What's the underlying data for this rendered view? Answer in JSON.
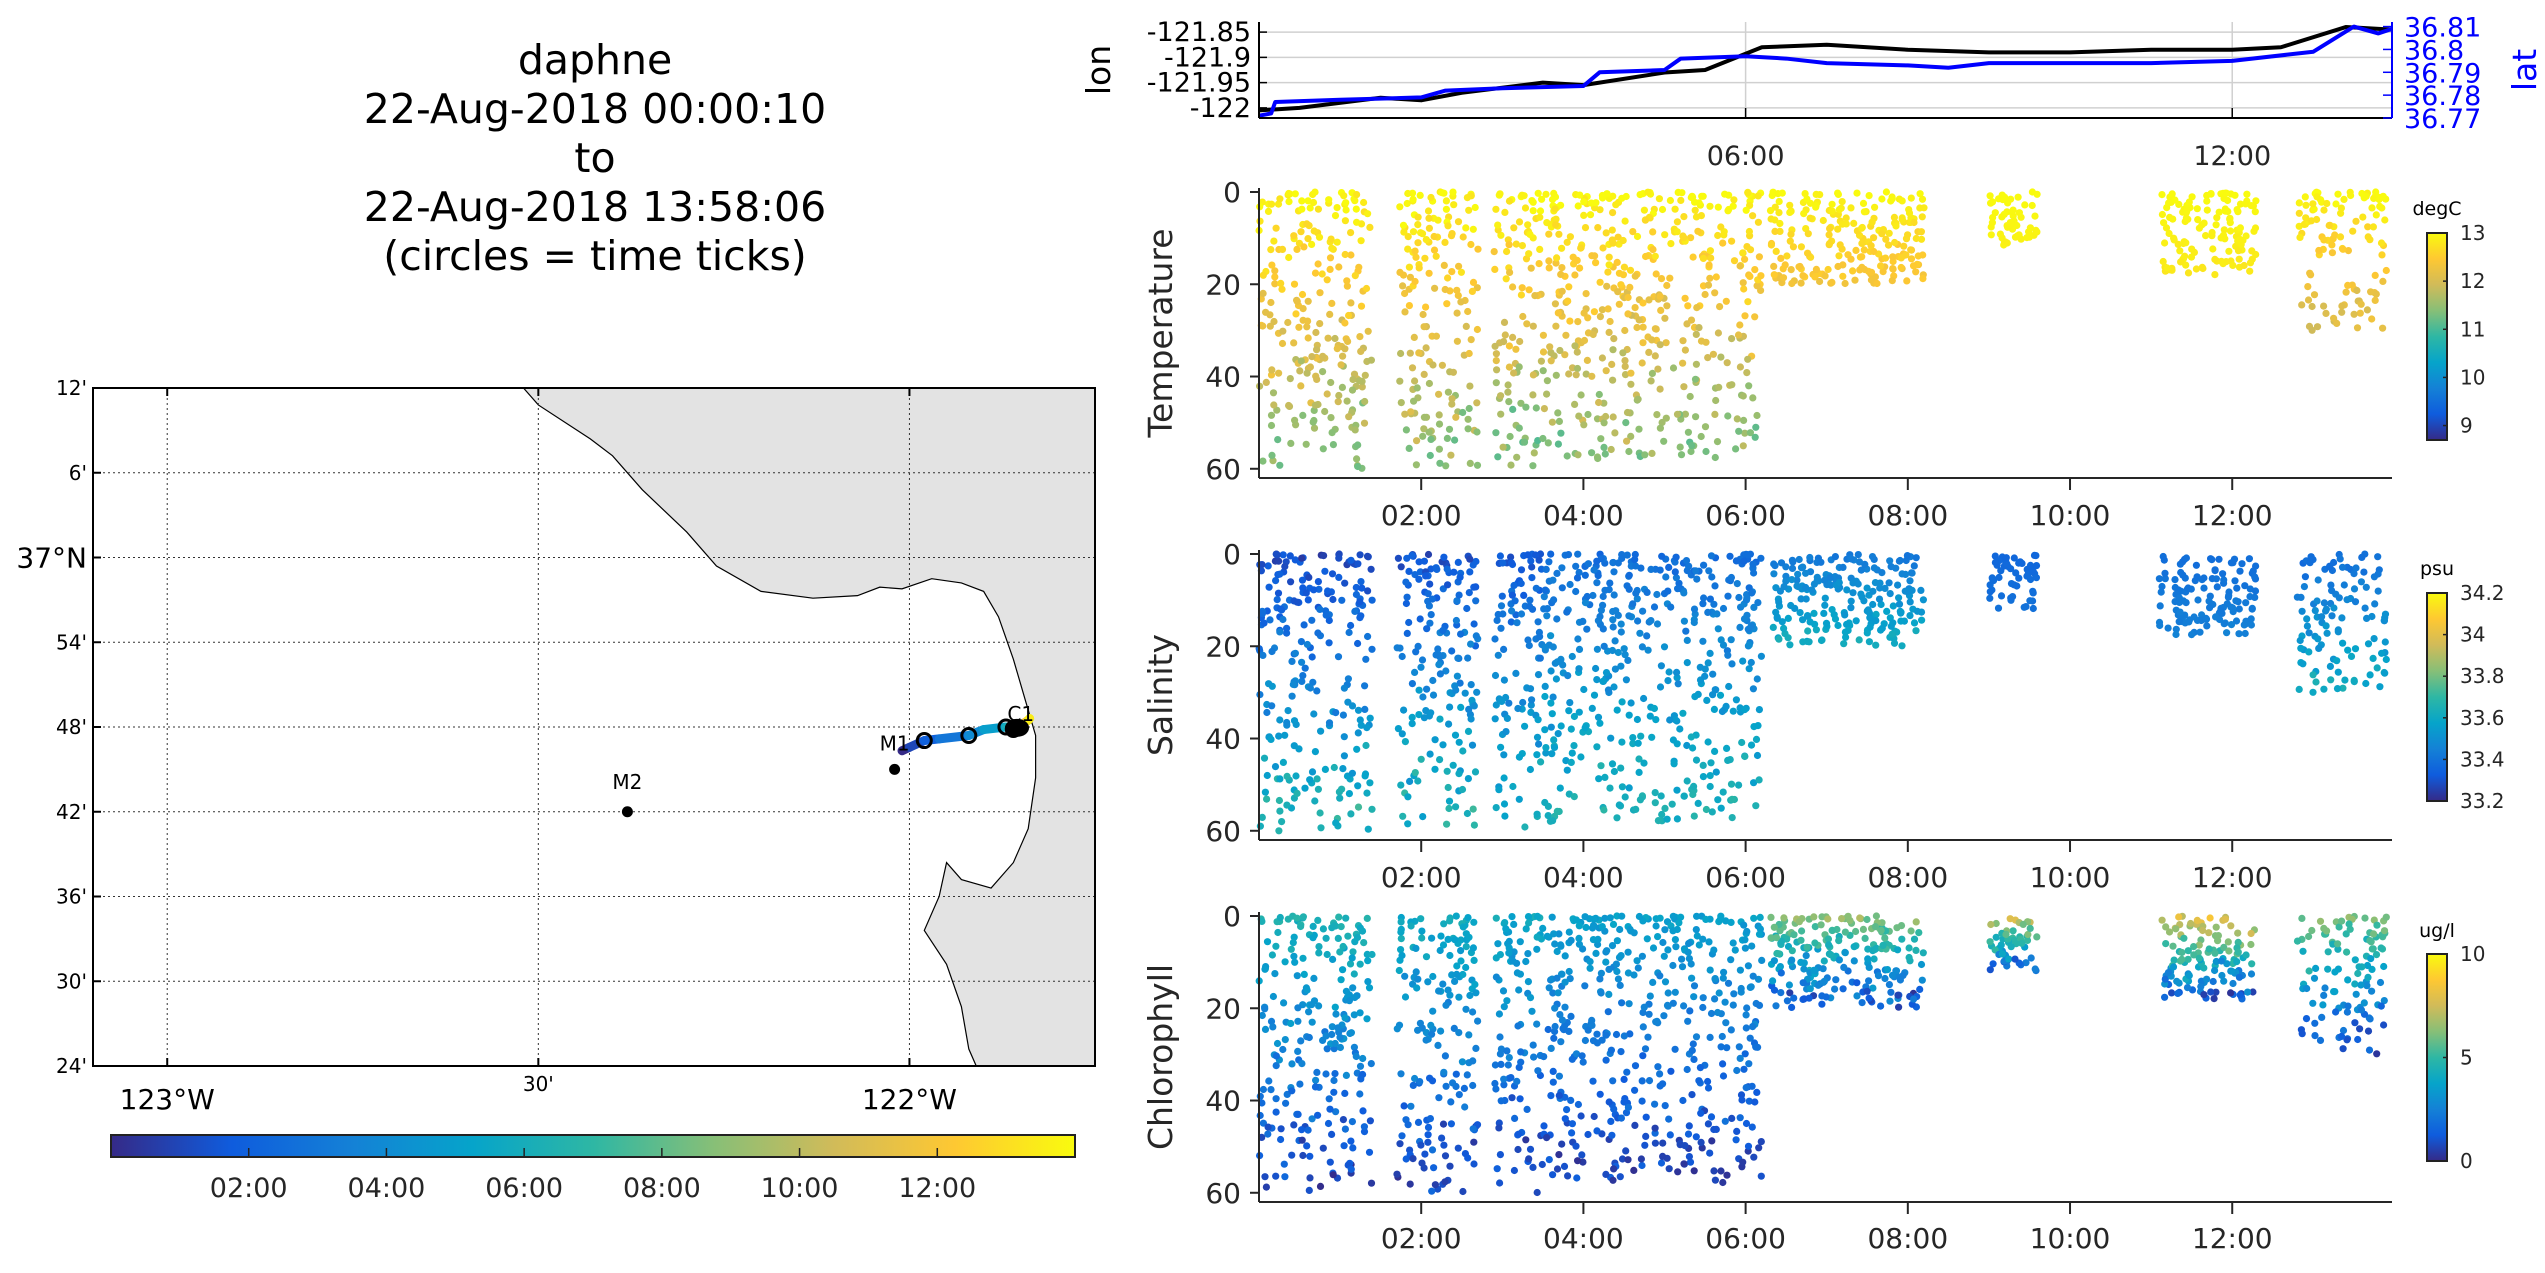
{
  "title": {
    "lines": [
      "daphne",
      "22-Aug-2018 00:00:10",
      "to",
      "22-Aug-2018 13:58:06",
      "(circles = time ticks)"
    ]
  },
  "colors": {
    "land": "#e3e3e3",
    "track_lon": "#000000",
    "track_lat": "#0000ff",
    "parula": [
      "#352a87",
      "#0f5cdd",
      "#1481d6",
      "#06a4ca",
      "#2eb7a4",
      "#87bf77",
      "#d1bb59",
      "#fec832",
      "#f9fb0e"
    ]
  },
  "map": {
    "lat_ticks": [
      "12'",
      "6'",
      "37°N",
      "54'",
      "48'",
      "42'",
      "36'",
      "30'",
      "24'"
    ],
    "lat_values": [
      37.2,
      37.1,
      37.0,
      36.9,
      36.8,
      36.7,
      36.6,
      36.5,
      36.4
    ],
    "lon_ticks": [
      "123°W",
      "30'",
      "122°W"
    ],
    "lon_values": [
      -123.0,
      -122.5,
      -122.0
    ],
    "lon_range": [
      -123.1,
      -121.75
    ],
    "lat_range": [
      36.4,
      37.2
    ],
    "stations": [
      {
        "name": "M2",
        "lon": -122.38,
        "lat": 36.7
      },
      {
        "name": "M1",
        "lon": -122.02,
        "lat": 36.75
      }
    ],
    "station_labels": [
      {
        "name": "C1",
        "lon": -121.85,
        "lat": 36.8
      },
      {
        "name": "M1",
        "lon": -122.02,
        "lat": 36.765
      },
      {
        "name": "M2",
        "lon": -122.38,
        "lat": 36.72
      }
    ],
    "track": [
      {
        "t": 0.0,
        "lon": -122.01,
        "lat": 36.772
      },
      {
        "t": 1.0,
        "lon": -122.0,
        "lat": 36.776
      },
      {
        "t": 2.0,
        "lon": -121.98,
        "lat": 36.784
      },
      {
        "t": 3.0,
        "lon": -121.96,
        "lat": 36.786
      },
      {
        "t": 4.0,
        "lon": -121.92,
        "lat": 36.79
      },
      {
        "t": 5.0,
        "lon": -121.9,
        "lat": 36.797
      },
      {
        "t": 6.0,
        "lon": -121.87,
        "lat": 36.8
      },
      {
        "t": 8.0,
        "lon": -121.86,
        "lat": 36.797
      },
      {
        "t": 10.0,
        "lon": -121.86,
        "lat": 36.798
      },
      {
        "t": 12.0,
        "lon": -121.855,
        "lat": 36.799
      },
      {
        "t": 13.5,
        "lon": -121.84,
        "lat": 36.808
      },
      {
        "t": 13.97,
        "lon": -121.838,
        "lat": 36.81
      }
    ],
    "time_tick_circles_t": [
      2,
      4,
      6,
      8,
      10,
      12
    ]
  },
  "map_colorbar": {
    "ticks": [
      "02:00",
      "04:00",
      "06:00",
      "08:00",
      "10:00",
      "12:00"
    ],
    "tick_hours": [
      2,
      4,
      6,
      8,
      10,
      12
    ],
    "range_hours": [
      0,
      14
    ]
  },
  "chart_data": [
    {
      "type": "line",
      "title": "",
      "ylabel": "lon",
      "ylabel_right": "lat",
      "xlim_hours": [
        0.0,
        13.97
      ],
      "x_ticks": [
        "06:00",
        "12:00"
      ],
      "x_tick_hours": [
        6,
        12
      ],
      "ylim_left": [
        -122.02,
        -121.83
      ],
      "y_ticks_left": [
        "-121.85",
        "-121.9",
        "-121.95",
        "-122"
      ],
      "y_tick_values_left": [
        -121.85,
        -121.9,
        -121.95,
        -122.0
      ],
      "ylim_right": [
        36.77,
        36.812
      ],
      "y_ticks_right": [
        "36.81",
        "36.8",
        "36.79",
        "36.78",
        "36.77"
      ],
      "y_tick_values_right": [
        36.81,
        36.8,
        36.79,
        36.78,
        36.77
      ],
      "grid": true,
      "series": [
        {
          "name": "lon",
          "axis": "left",
          "x": [
            0,
            0.5,
            1.5,
            2.0,
            2.5,
            3.5,
            4.0,
            5.0,
            5.5,
            6.2,
            7.0,
            8.0,
            9.0,
            10.0,
            11.0,
            12.0,
            12.6,
            13.4,
            13.97
          ],
          "y": [
            -122.005,
            -122.0,
            -121.98,
            -121.985,
            -121.97,
            -121.95,
            -121.955,
            -121.93,
            -121.925,
            -121.88,
            -121.875,
            -121.885,
            -121.89,
            -121.89,
            -121.885,
            -121.885,
            -121.88,
            -121.84,
            -121.845
          ]
        },
        {
          "name": "lat",
          "axis": "right",
          "x": [
            0,
            0.15,
            0.2,
            1.0,
            2.0,
            2.3,
            3.0,
            4.0,
            4.2,
            5.0,
            5.2,
            6.0,
            6.5,
            7.0,
            8.0,
            8.5,
            9.0,
            10.0,
            11.0,
            12.0,
            13.0,
            13.5,
            13.8,
            13.97
          ],
          "y": [
            36.771,
            36.772,
            36.777,
            36.778,
            36.779,
            36.782,
            36.783,
            36.784,
            36.79,
            36.791,
            36.796,
            36.797,
            36.796,
            36.794,
            36.793,
            36.792,
            36.794,
            36.794,
            36.794,
            36.795,
            36.799,
            36.81,
            36.807,
            36.809
          ]
        }
      ]
    },
    {
      "type": "scatter",
      "ylabel": "Temperature",
      "colorbar_label": "degC",
      "clim": [
        8.7,
        13.0
      ],
      "colorbar_ticks": [
        "13",
        "12",
        "11",
        "10",
        "9"
      ],
      "colorbar_tick_values": [
        13,
        12,
        11,
        10,
        9
      ],
      "y_ticks": [
        "0",
        "20",
        "40",
        "60"
      ],
      "y_tick_values": [
        0,
        20,
        40,
        60
      ],
      "ylim": [
        0,
        62
      ],
      "y_reversed": true,
      "xlim_hours": [
        0.0,
        13.97
      ],
      "x_ticks": [
        "02:00",
        "04:00",
        "06:00",
        "08:00",
        "10:00",
        "12:00"
      ],
      "x_tick_hours": [
        2,
        4,
        6,
        8,
        10,
        12
      ],
      "segments": [
        {
          "t0": 0.0,
          "t1": 1.4,
          "zmax": 60,
          "surface": 13.0,
          "bottom": 11.3
        },
        {
          "t0": 1.7,
          "t1": 2.7,
          "zmax": 60,
          "surface": 13.0,
          "bottom": 11.3
        },
        {
          "t0": 2.9,
          "t1": 3.5,
          "zmax": 60,
          "surface": 13.0,
          "bottom": 11.2
        },
        {
          "t0": 3.5,
          "t1": 6.2,
          "zmax": 58,
          "surface": 13.0,
          "bottom": 11.3
        },
        {
          "t0": 6.3,
          "t1": 8.2,
          "zmax": 20,
          "surface": 13.0,
          "bottom": 12.3
        },
        {
          "t0": 9.0,
          "t1": 9.6,
          "zmax": 12,
          "surface": 13.0,
          "bottom": 12.9
        },
        {
          "t0": 11.1,
          "t1": 12.3,
          "zmax": 18,
          "surface": 13.0,
          "bottom": 12.8
        },
        {
          "t0": 12.8,
          "t1": 13.9,
          "zmax": 30,
          "surface": 13.0,
          "bottom": 12.0
        }
      ]
    },
    {
      "type": "scatter",
      "ylabel": "Salinity",
      "colorbar_label": "psu",
      "clim": [
        33.2,
        34.2
      ],
      "colorbar_ticks": [
        "34.2",
        "34",
        "33.8",
        "33.6",
        "33.4",
        "33.2"
      ],
      "colorbar_tick_values": [
        34.2,
        34.0,
        33.8,
        33.6,
        33.4,
        33.2
      ],
      "y_ticks": [
        "0",
        "20",
        "40",
        "60"
      ],
      "y_tick_values": [
        0,
        20,
        40,
        60
      ],
      "ylim": [
        0,
        62
      ],
      "y_reversed": true,
      "xlim_hours": [
        0.0,
        13.97
      ],
      "x_ticks": [
        "02:00",
        "04:00",
        "06:00",
        "08:00",
        "10:00",
        "12:00"
      ],
      "x_tick_hours": [
        2,
        4,
        6,
        8,
        10,
        12
      ],
      "segments": [
        {
          "t0": 0.0,
          "t1": 1.4,
          "zmax": 60,
          "surface": 33.28,
          "bottom": 33.68
        },
        {
          "t0": 1.7,
          "t1": 2.7,
          "zmax": 60,
          "surface": 33.3,
          "bottom": 33.68
        },
        {
          "t0": 2.9,
          "t1": 3.5,
          "zmax": 60,
          "surface": 33.32,
          "bottom": 33.66
        },
        {
          "t0": 3.5,
          "t1": 6.2,
          "zmax": 58,
          "surface": 33.38,
          "bottom": 33.66
        },
        {
          "t0": 6.3,
          "t1": 8.2,
          "zmax": 20,
          "surface": 33.42,
          "bottom": 33.62
        },
        {
          "t0": 9.0,
          "t1": 9.6,
          "zmax": 12,
          "surface": 33.36,
          "bottom": 33.4
        },
        {
          "t0": 11.1,
          "t1": 12.3,
          "zmax": 18,
          "surface": 33.38,
          "bottom": 33.45
        },
        {
          "t0": 12.8,
          "t1": 13.9,
          "zmax": 30,
          "surface": 33.38,
          "bottom": 33.62
        }
      ]
    },
    {
      "type": "scatter",
      "ylabel": "Chlorophyll",
      "colorbar_label": "ug/l",
      "clim": [
        0,
        10
      ],
      "colorbar_ticks": [
        "10",
        "5",
        "0"
      ],
      "colorbar_tick_values": [
        10,
        5,
        0
      ],
      "y_ticks": [
        "0",
        "20",
        "40",
        "60"
      ],
      "y_tick_values": [
        0,
        20,
        40,
        60
      ],
      "ylim": [
        0,
        62
      ],
      "y_reversed": true,
      "xlim_hours": [
        0.0,
        13.97
      ],
      "x_ticks": [
        "02:00",
        "04:00",
        "06:00",
        "08:00",
        "10:00",
        "12:00"
      ],
      "x_tick_hours": [
        2,
        4,
        6,
        8,
        10,
        12
      ],
      "segments": [
        {
          "t0": 0.0,
          "t1": 1.4,
          "zmax": 60,
          "surface": 4.5,
          "bottom": 0.5
        },
        {
          "t0": 1.7,
          "t1": 2.7,
          "zmax": 60,
          "surface": 4.2,
          "bottom": 0.5
        },
        {
          "t0": 2.9,
          "t1": 3.5,
          "zmax": 60,
          "surface": 4.0,
          "bottom": 0.5
        },
        {
          "t0": 3.5,
          "t1": 6.2,
          "zmax": 58,
          "surface": 3.6,
          "bottom": 0.5
        },
        {
          "t0": 6.3,
          "t1": 8.2,
          "zmax": 20,
          "surface": 6.5,
          "bottom": 0.7
        },
        {
          "t0": 9.0,
          "t1": 9.6,
          "zmax": 12,
          "surface": 7.5,
          "bottom": 1.0
        },
        {
          "t0": 11.1,
          "t1": 12.3,
          "zmax": 18,
          "surface": 8.0,
          "bottom": 1.0
        },
        {
          "t0": 12.8,
          "t1": 13.9,
          "zmax": 30,
          "surface": 6.0,
          "bottom": 0.8
        }
      ]
    }
  ]
}
